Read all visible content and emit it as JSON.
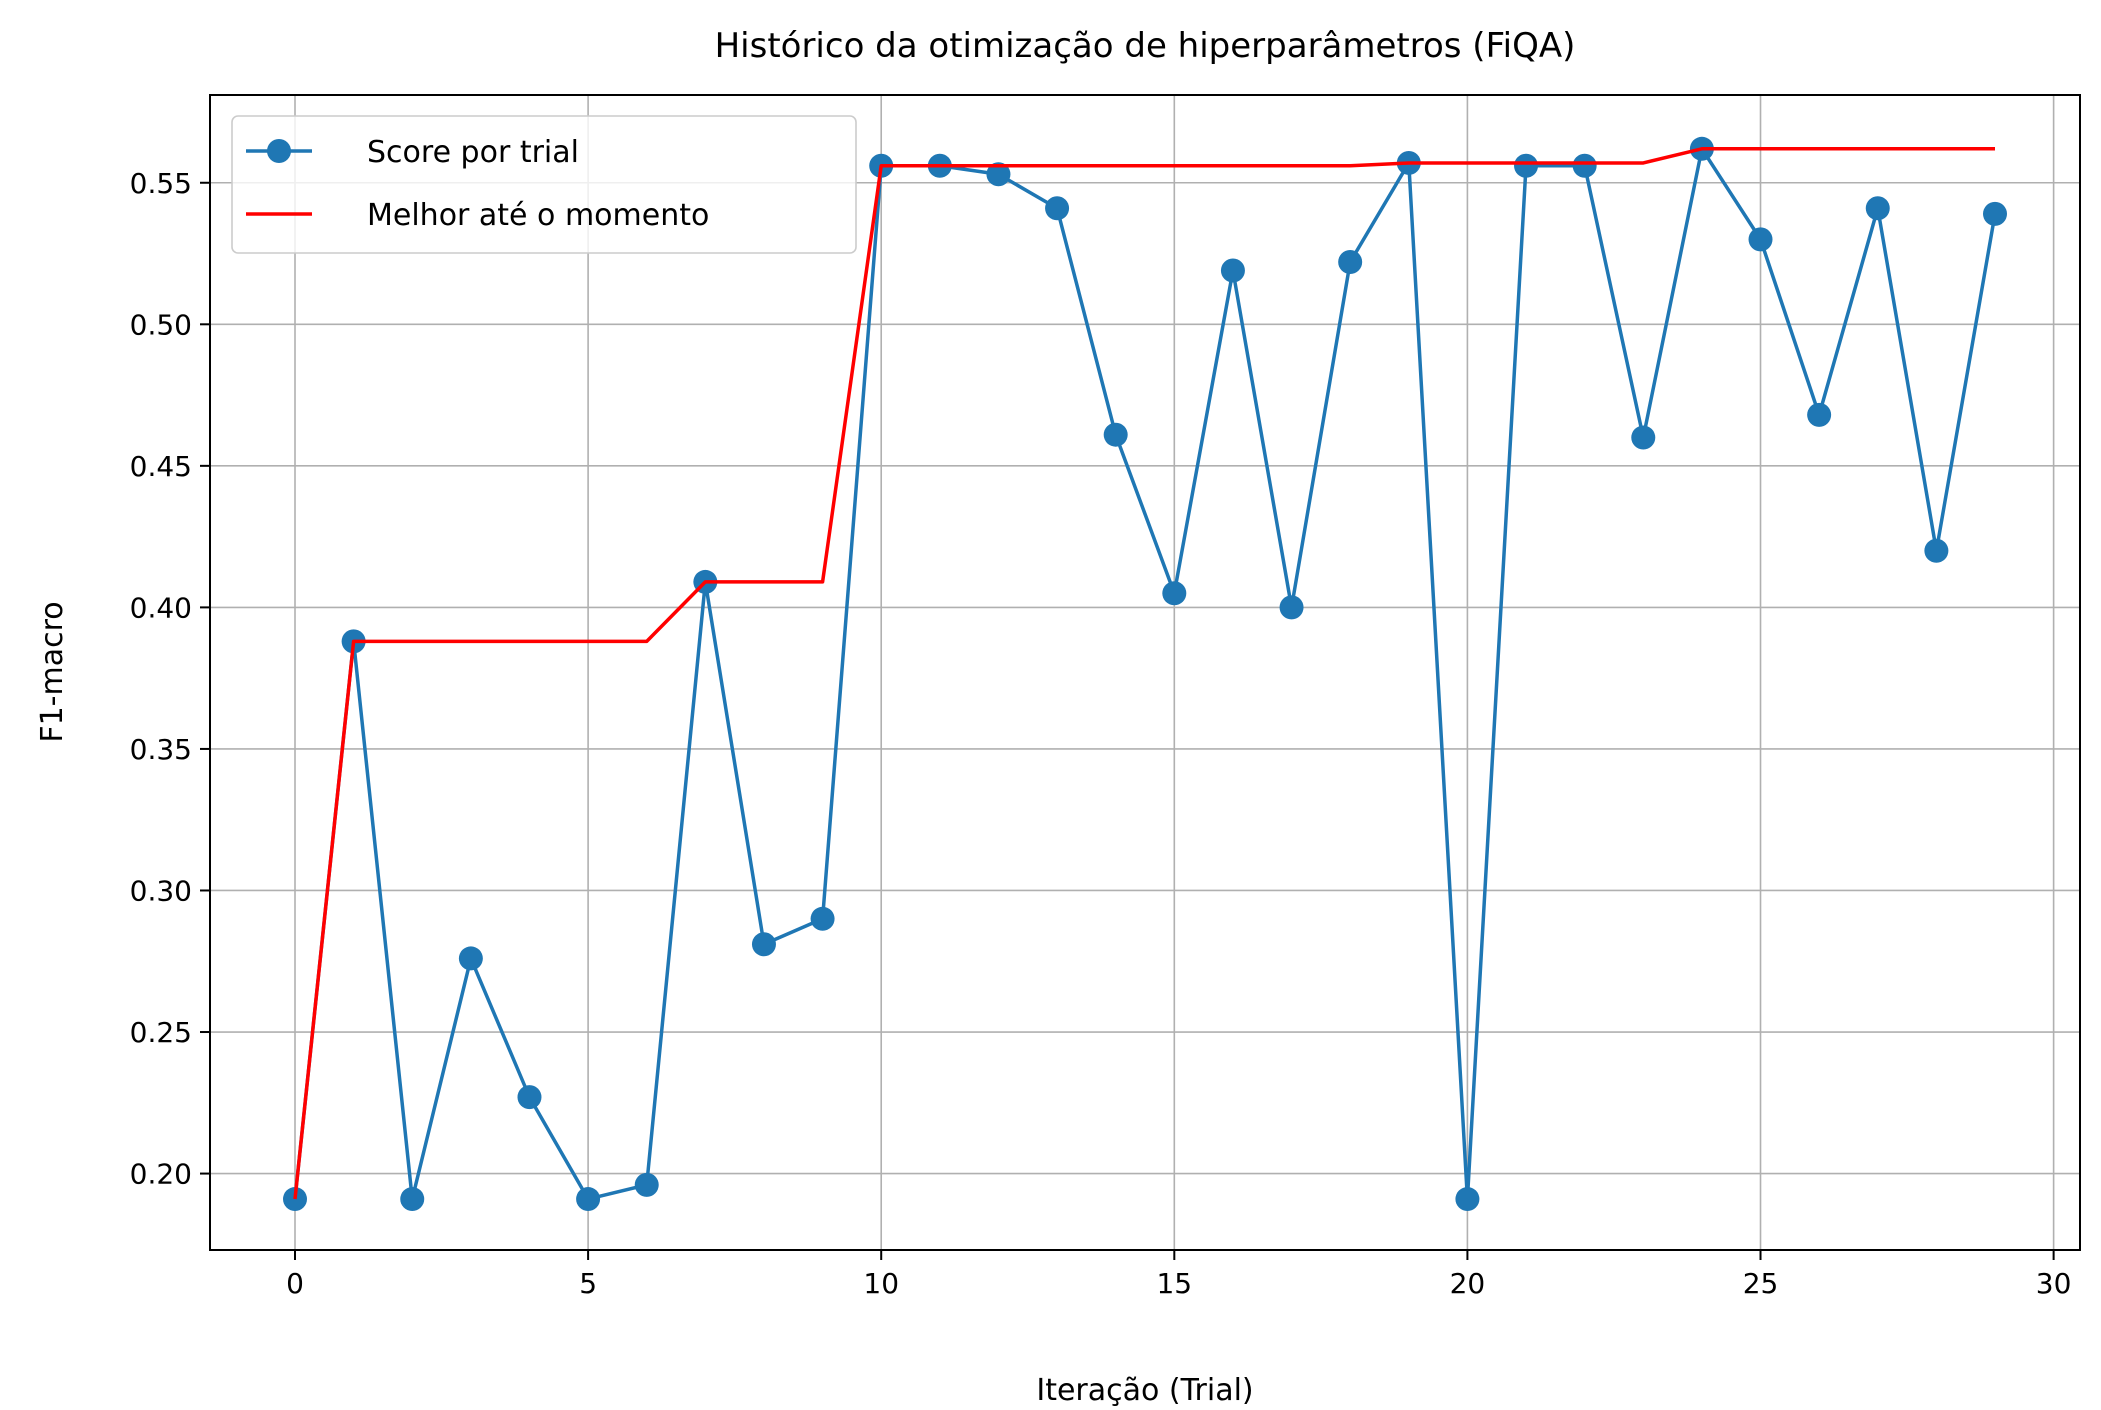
{
  "chart_data": {
    "type": "line",
    "title": "Histórico da otimização de hiperparâmetros (FiQA)",
    "xlabel": "Iteração (Trial)",
    "ylabel": "F1-macro",
    "xlim": [
      -1.45,
      30.45
    ],
    "ylim": [
      0.173,
      0.581
    ],
    "xticks": [
      0,
      5,
      10,
      15,
      20,
      25,
      30
    ],
    "xtick_labels": [
      "0",
      "5",
      "10",
      "15",
      "20",
      "25",
      "30"
    ],
    "yticks": [
      0.2,
      0.25,
      0.3,
      0.35,
      0.4,
      0.45,
      0.5,
      0.55
    ],
    "ytick_labels": [
      "0.20",
      "0.25",
      "0.30",
      "0.35",
      "0.40",
      "0.45",
      "0.50",
      "0.55"
    ],
    "grid": true,
    "legend_position": "top-left",
    "x": [
      0,
      1,
      2,
      3,
      4,
      5,
      6,
      7,
      8,
      9,
      10,
      11,
      12,
      13,
      14,
      15,
      16,
      17,
      18,
      19,
      20,
      21,
      22,
      23,
      24,
      25,
      26,
      27,
      28,
      29
    ],
    "series": [
      {
        "name": "Score por trial",
        "color": "#1f77b4",
        "marker": "circle",
        "values": [
          0.191,
          0.388,
          0.191,
          0.276,
          0.227,
          0.191,
          0.196,
          0.409,
          0.281,
          0.29,
          0.556,
          0.556,
          0.553,
          0.541,
          0.461,
          0.405,
          0.519,
          0.4,
          0.522,
          0.557,
          0.191,
          0.556,
          0.556,
          0.46,
          0.562,
          0.53,
          0.468,
          0.541,
          0.42,
          0.539
        ]
      },
      {
        "name": "Melhor até o momento",
        "color": "#ff0000",
        "marker": "none",
        "values": [
          0.191,
          0.388,
          0.388,
          0.388,
          0.388,
          0.388,
          0.388,
          0.409,
          0.409,
          0.409,
          0.556,
          0.556,
          0.556,
          0.556,
          0.556,
          0.556,
          0.556,
          0.556,
          0.556,
          0.557,
          0.557,
          0.557,
          0.557,
          0.557,
          0.562,
          0.562,
          0.562,
          0.562,
          0.562,
          0.562
        ]
      }
    ]
  }
}
